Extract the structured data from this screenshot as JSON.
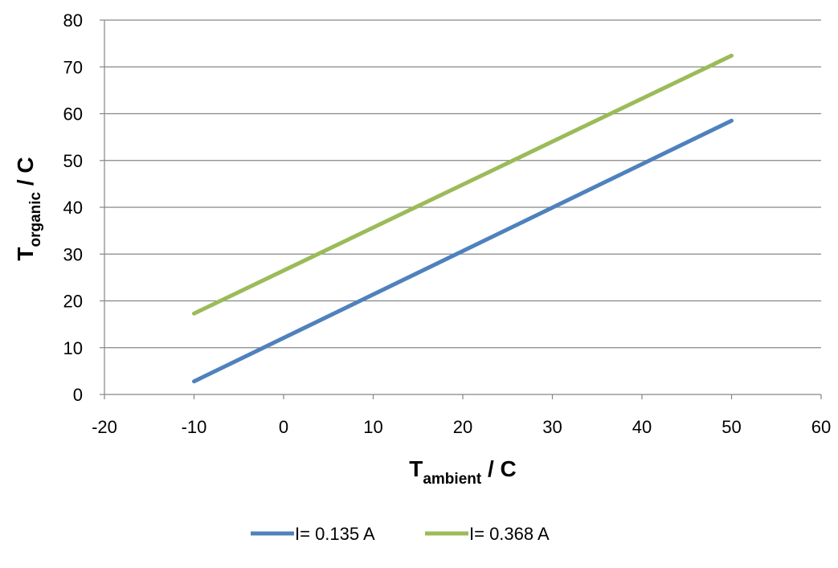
{
  "chart_data": {
    "type": "line",
    "xlim": [
      -20,
      60
    ],
    "ylim": [
      0,
      80
    ],
    "x_ticks": [
      -20,
      -10,
      0,
      10,
      20,
      30,
      40,
      50,
      60
    ],
    "y_ticks": [
      0,
      10,
      20,
      30,
      40,
      50,
      60,
      70,
      80
    ],
    "x_tick_labels": [
      "-20",
      "-10",
      "0",
      "10",
      "20",
      "30",
      "40",
      "50",
      "60"
    ],
    "y_tick_labels": [
      "0",
      "10",
      "20",
      "30",
      "40",
      "50",
      "60",
      "70",
      "80"
    ],
    "xlabel": {
      "main": "T",
      "sub": "ambient",
      "suffix": " / C"
    },
    "ylabel": {
      "main": "T",
      "sub": "organic",
      "suffix": " / C"
    },
    "grid": "horizontal",
    "legend_position": "bottom-center",
    "x": [
      -10,
      50
    ],
    "series": [
      {
        "name": "I= 0.135 A",
        "color": "#4f81bd",
        "values": [
          2.8,
          58.5
        ]
      },
      {
        "name": "I= 0.368 A",
        "color": "#9bbb59",
        "values": [
          17.3,
          72.4
        ]
      }
    ]
  }
}
